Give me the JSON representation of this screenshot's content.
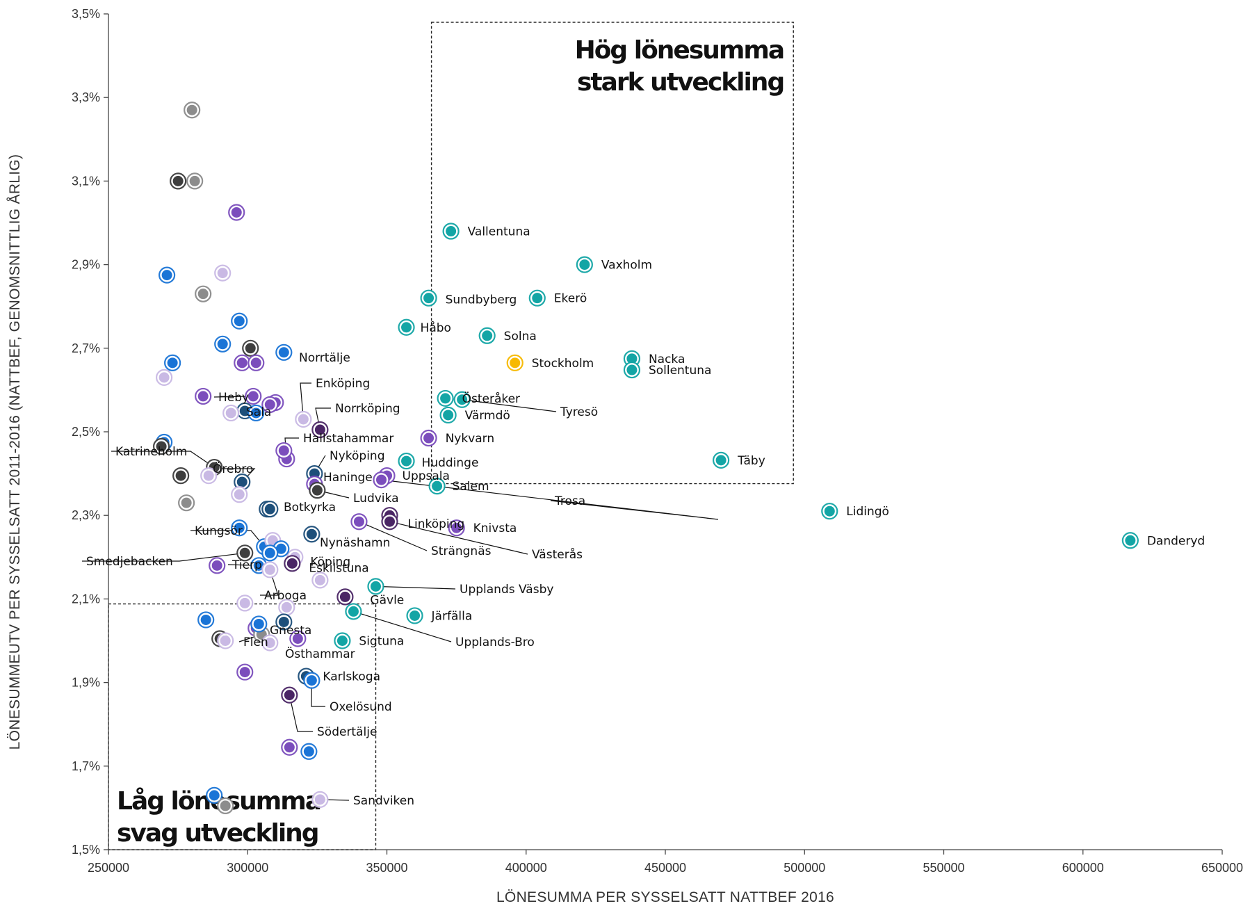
{
  "chart_data": {
    "type": "scatter",
    "title": "",
    "xlabel": "LÖNESUMMA PER SYSSELSATT NATTBEF 2016",
    "ylabel": "LÖNESUMMEUTV PER SYSSELSATT 2011-2016 (NATTBEF, GENOMSNITTLIG ÅRLIG)",
    "xlim": [
      250000,
      650000
    ],
    "ylim": [
      1.5,
      3.5
    ],
    "x_ticks": [
      "250000",
      "300000",
      "350000",
      "400000",
      "450000",
      "500000",
      "550000",
      "600000",
      "650000"
    ],
    "y_ticks": [
      "1,5%",
      "1,7%",
      "1,9%",
      "2,1%",
      "2,3%",
      "2,5%",
      "2,7%",
      "2,9%",
      "3,1%",
      "3,3%",
      "3,5%"
    ],
    "grid": false,
    "regions": [
      {
        "name": "high",
        "label_lines": [
          "Hög lönesumma",
          "stark utveckling"
        ],
        "x": [
          366000,
          496000
        ],
        "y": [
          2.376,
          3.48
        ]
      },
      {
        "name": "low",
        "label_lines": [
          "Låg lönesumma",
          "svag utveckling"
        ],
        "x": [
          250000,
          346000
        ],
        "y": [
          1.5,
          2.088
        ]
      }
    ],
    "colors": {
      "teal": "#13a5a5",
      "yellow": "#f7b900",
      "blue": "#1a74d6",
      "navy": "#1d4f7a",
      "purple": "#7b4dbc",
      "darkpurple": "#4a2565",
      "gray": "#8c8c8c",
      "darkgray": "#3e3e3e",
      "lavender": "#c9b9e4",
      "label_line": "#111111"
    },
    "points": [
      {
        "x": 373000,
        "y": 2.98,
        "c": "teal",
        "label": "Vallentuna"
      },
      {
        "x": 421000,
        "y": 2.9,
        "c": "teal",
        "label": "Vaxholm"
      },
      {
        "x": 365000,
        "y": 2.82,
        "c": "teal",
        "label": "Sundbyberg"
      },
      {
        "x": 404000,
        "y": 2.82,
        "c": "teal",
        "label": "Ekerö"
      },
      {
        "x": 357000,
        "y": 2.75,
        "c": "teal",
        "label": "Håbo"
      },
      {
        "x": 386000,
        "y": 2.73,
        "c": "teal",
        "label": "Solna"
      },
      {
        "x": 396000,
        "y": 2.665,
        "c": "yellow",
        "label": "Stockholm"
      },
      {
        "x": 438000,
        "y": 2.675,
        "c": "teal",
        "label": "Nacka"
      },
      {
        "x": 438000,
        "y": 2.648,
        "c": "teal",
        "label": "Sollentuna"
      },
      {
        "x": 371000,
        "y": 2.58,
        "c": "teal",
        "label": "Österåker"
      },
      {
        "x": 377000,
        "y": 2.577,
        "c": "teal",
        "label": "Tyresö"
      },
      {
        "x": 372000,
        "y": 2.54,
        "c": "teal",
        "label": "Värmdö"
      },
      {
        "x": 365000,
        "y": 2.485,
        "c": "purple",
        "label": "Nykvarn"
      },
      {
        "x": 357000,
        "y": 2.43,
        "c": "teal",
        "label": "Huddinge"
      },
      {
        "x": 470000,
        "y": 2.432,
        "c": "teal",
        "label": "Täby"
      },
      {
        "x": 350000,
        "y": 2.395,
        "c": "purple",
        "label": "Uppsala"
      },
      {
        "x": 368000,
        "y": 2.37,
        "c": "teal",
        "label": "Salem"
      },
      {
        "x": 348000,
        "y": 2.385,
        "c": "purple",
        "label": "Trosa"
      },
      {
        "x": 509000,
        "y": 2.31,
        "c": "teal",
        "label": "Lidingö"
      },
      {
        "x": 617000,
        "y": 2.24,
        "c": "teal",
        "label": "Danderyd"
      },
      {
        "x": 351000,
        "y": 2.3,
        "c": "darkpurple",
        "label": "Linköping"
      },
      {
        "x": 351000,
        "y": 2.285,
        "c": "darkpurple",
        "label": "Västerås"
      },
      {
        "x": 375000,
        "y": 2.27,
        "c": "purple",
        "label": "Knivsta"
      },
      {
        "x": 340000,
        "y": 2.285,
        "c": "purple",
        "label": "Strängnäs"
      },
      {
        "x": 346000,
        "y": 2.13,
        "c": "teal",
        "label": "Upplands Väsby"
      },
      {
        "x": 335000,
        "y": 2.105,
        "c": "darkpurple",
        "label": "Gävle"
      },
      {
        "x": 360000,
        "y": 2.06,
        "c": "teal",
        "label": "Järfälla"
      },
      {
        "x": 338000,
        "y": 2.07,
        "c": "teal",
        "label": "Upplands-Bro"
      },
      {
        "x": 334000,
        "y": 2.0,
        "c": "teal",
        "label": "Sigtuna"
      },
      {
        "x": 313000,
        "y": 2.69,
        "c": "blue",
        "label": "Norrtälje"
      },
      {
        "x": 302000,
        "y": 2.585,
        "c": "purple",
        "label": "Heby"
      },
      {
        "x": 299000,
        "y": 2.55,
        "c": "navy",
        "label": "Sala"
      },
      {
        "x": 320000,
        "y": 2.53,
        "c": "lavender",
        "label": "Enköping"
      },
      {
        "x": 326000,
        "y": 2.505,
        "c": "darkpurple",
        "label": "Norrköping"
      },
      {
        "x": 314000,
        "y": 2.435,
        "c": "purple",
        "label": "Hallstahammar"
      },
      {
        "x": 324000,
        "y": 2.4,
        "c": "navy",
        "label": "Nyköping"
      },
      {
        "x": 324000,
        "y": 2.375,
        "c": "purple",
        "label": "Haninge"
      },
      {
        "x": 325000,
        "y": 2.36,
        "c": "darkgray",
        "label": "Ludvika"
      },
      {
        "x": 288000,
        "y": 2.415,
        "c": "darkgray",
        "label": "Katrineholm"
      },
      {
        "x": 298000,
        "y": 2.38,
        "c": "navy",
        "label": "Örebro"
      },
      {
        "x": 307000,
        "y": 2.315,
        "c": "navy",
        "label": "Botkyrka"
      },
      {
        "x": 306000,
        "y": 2.225,
        "c": "blue",
        "label": "Kungsör"
      },
      {
        "x": 323000,
        "y": 2.255,
        "c": "navy",
        "label": "Nynäshamn"
      },
      {
        "x": 299000,
        "y": 2.21,
        "c": "darkgray",
        "label": "Smedjebacken"
      },
      {
        "x": 317000,
        "y": 2.2,
        "c": "lavender",
        "label": "Köping"
      },
      {
        "x": 304000,
        "y": 2.18,
        "c": "blue",
        "label": "Tierp"
      },
      {
        "x": 316000,
        "y": 2.185,
        "c": "darkpurple",
        "label": "Eskilstuna"
      },
      {
        "x": 308000,
        "y": 2.17,
        "c": "lavender",
        "label": "Arboga"
      },
      {
        "x": 303000,
        "y": 2.03,
        "c": "purple",
        "label": "Gnesta"
      },
      {
        "x": 305000,
        "y": 2.015,
        "c": "gray",
        "label": "Flen"
      },
      {
        "x": 308000,
        "y": 1.995,
        "c": "lavender",
        "label": "Östhammar"
      },
      {
        "x": 321000,
        "y": 1.915,
        "c": "navy",
        "label": "Karlskoga"
      },
      {
        "x": 323000,
        "y": 1.905,
        "c": "blue",
        "label": "Oxelösund"
      },
      {
        "x": 315000,
        "y": 1.87,
        "c": "darkpurple",
        "label": "Södertälje"
      },
      {
        "x": 326000,
        "y": 1.62,
        "c": "lavender",
        "label": "Sandviken"
      },
      {
        "x": 280000,
        "y": 3.27,
        "c": "gray"
      },
      {
        "x": 275000,
        "y": 3.1,
        "c": "darkgray"
      },
      {
        "x": 281000,
        "y": 3.1,
        "c": "gray"
      },
      {
        "x": 296000,
        "y": 3.025,
        "c": "purple"
      },
      {
        "x": 271000,
        "y": 2.875,
        "c": "blue"
      },
      {
        "x": 291000,
        "y": 2.88,
        "c": "lavender"
      },
      {
        "x": 284000,
        "y": 2.83,
        "c": "gray"
      },
      {
        "x": 297000,
        "y": 2.765,
        "c": "blue"
      },
      {
        "x": 291000,
        "y": 2.71,
        "c": "blue"
      },
      {
        "x": 301000,
        "y": 2.7,
        "c": "darkgray"
      },
      {
        "x": 273000,
        "y": 2.665,
        "c": "blue"
      },
      {
        "x": 298000,
        "y": 2.665,
        "c": "purple"
      },
      {
        "x": 303000,
        "y": 2.665,
        "c": "purple"
      },
      {
        "x": 270000,
        "y": 2.63,
        "c": "lavender"
      },
      {
        "x": 284000,
        "y": 2.585,
        "c": "purple"
      },
      {
        "x": 310000,
        "y": 2.57,
        "c": "purple"
      },
      {
        "x": 308000,
        "y": 2.565,
        "c": "purple"
      },
      {
        "x": 294000,
        "y": 2.545,
        "c": "lavender"
      },
      {
        "x": 303000,
        "y": 2.545,
        "c": "blue"
      },
      {
        "x": 270000,
        "y": 2.475,
        "c": "blue"
      },
      {
        "x": 269000,
        "y": 2.465,
        "c": "darkgray"
      },
      {
        "x": 313000,
        "y": 2.455,
        "c": "purple"
      },
      {
        "x": 276000,
        "y": 2.395,
        "c": "darkgray"
      },
      {
        "x": 286000,
        "y": 2.395,
        "c": "lavender"
      },
      {
        "x": 278000,
        "y": 2.33,
        "c": "gray"
      },
      {
        "x": 297000,
        "y": 2.35,
        "c": "lavender"
      },
      {
        "x": 308000,
        "y": 2.315,
        "c": "navy"
      },
      {
        "x": 297000,
        "y": 2.27,
        "c": "blue"
      },
      {
        "x": 309000,
        "y": 2.24,
        "c": "lavender"
      },
      {
        "x": 312000,
        "y": 2.22,
        "c": "blue"
      },
      {
        "x": 308000,
        "y": 2.21,
        "c": "blue"
      },
      {
        "x": 289000,
        "y": 2.18,
        "c": "purple"
      },
      {
        "x": 326000,
        "y": 2.145,
        "c": "lavender"
      },
      {
        "x": 299000,
        "y": 2.09,
        "c": "lavender"
      },
      {
        "x": 314000,
        "y": 2.08,
        "c": "lavender"
      },
      {
        "x": 285000,
        "y": 2.05,
        "c": "blue"
      },
      {
        "x": 313000,
        "y": 2.045,
        "c": "navy"
      },
      {
        "x": 304000,
        "y": 2.04,
        "c": "blue"
      },
      {
        "x": 290000,
        "y": 2.005,
        "c": "darkgray"
      },
      {
        "x": 292000,
        "y": 2.0,
        "c": "lavender"
      },
      {
        "x": 318000,
        "y": 2.005,
        "c": "purple"
      },
      {
        "x": 299000,
        "y": 1.925,
        "c": "purple"
      },
      {
        "x": 315000,
        "y": 1.745,
        "c": "purple"
      },
      {
        "x": 322000,
        "y": 1.735,
        "c": "blue"
      },
      {
        "x": 288000,
        "y": 1.63,
        "c": "blue"
      },
      {
        "x": 292000,
        "y": 1.605,
        "c": "gray"
      }
    ]
  }
}
